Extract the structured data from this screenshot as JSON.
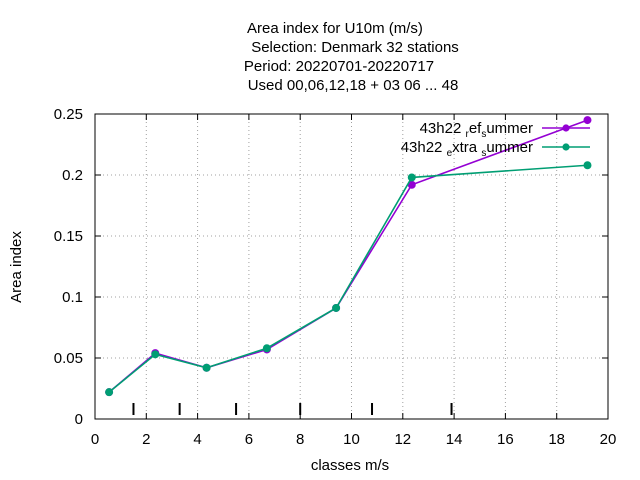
{
  "chart_data": {
    "type": "line",
    "title_lines": [
      "Area index  for U10m (m/s)",
      "Selection: Denmark     32 stations",
      "Period: 20220701-20220717",
      "Used  00,06,12,18  + 03 06 ... 48"
    ],
    "xlabel": "classes m/s",
    "ylabel": "Area index",
    "xlim": [
      0,
      20
    ],
    "ylim": [
      0,
      0.25
    ],
    "xticks": [
      0,
      2,
      4,
      6,
      8,
      10,
      12,
      14,
      16,
      18,
      20
    ],
    "yticks": [
      0,
      0.05,
      0.1,
      0.15,
      0.2,
      0.25
    ],
    "ytick_labels": [
      "0",
      "0.05",
      "0.1",
      "0.15",
      "0.2",
      "0.25"
    ],
    "grid": true,
    "legend_position": "top-right",
    "class_boundaries": [
      1.5,
      3.3,
      5.5,
      8.0,
      10.8,
      13.9
    ],
    "series": [
      {
        "name": "43h22_ref_summer",
        "legend_parts": [
          "43h22 ",
          "r",
          "ef",
          "s",
          "ummer"
        ],
        "color": "#9400d3",
        "x": [
          0.55,
          2.35,
          4.35,
          6.7,
          9.4,
          12.35,
          19.2
        ],
        "y": [
          0.022,
          0.054,
          0.042,
          0.057,
          0.091,
          0.192,
          0.245
        ]
      },
      {
        "name": "43h22_extra_summer",
        "legend_parts": [
          "43h22 ",
          "e",
          "xtra ",
          "s",
          "ummer"
        ],
        "color": "#009e73",
        "x": [
          0.55,
          2.35,
          4.35,
          6.7,
          9.4,
          12.35,
          19.2
        ],
        "y": [
          0.022,
          0.053,
          0.042,
          0.058,
          0.091,
          0.198,
          0.208
        ]
      }
    ]
  }
}
